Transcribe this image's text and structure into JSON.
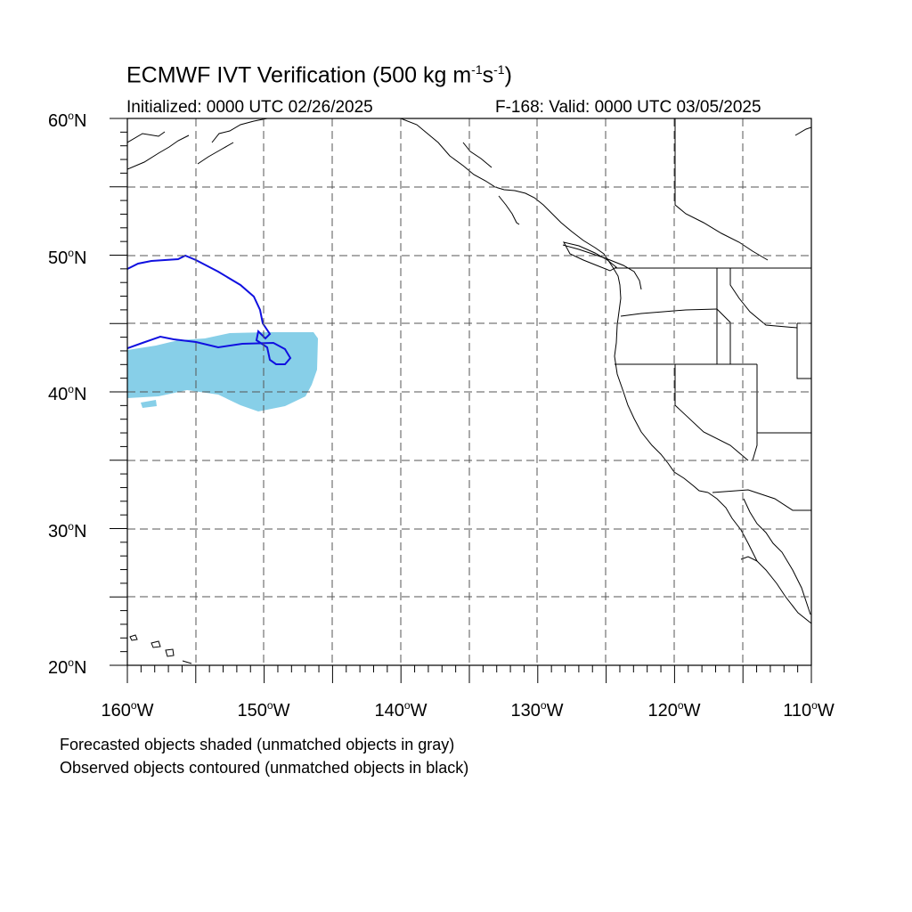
{
  "title": {
    "main": "ECMWF IVT Verification (500 kg m",
    "exp1": "-1",
    "mid": "s",
    "exp2": "-1",
    "close": ")"
  },
  "subtitle_left": "Initialized: 0000 UTC 02/26/2025",
  "subtitle_right": "F-168: Valid: 0000 UTC 03/05/2025",
  "lat_labels": [
    {
      "value": "60",
      "suffix": "N"
    },
    {
      "value": "50",
      "suffix": "N"
    },
    {
      "value": "40",
      "suffix": "N"
    },
    {
      "value": "30",
      "suffix": "N"
    },
    {
      "value": "20",
      "suffix": "N"
    }
  ],
  "lon_labels": [
    {
      "value": "160",
      "suffix": "W"
    },
    {
      "value": "150",
      "suffix": "W"
    },
    {
      "value": "140",
      "suffix": "W"
    },
    {
      "value": "130",
      "suffix": "W"
    },
    {
      "value": "120",
      "suffix": "W"
    },
    {
      "value": "110",
      "suffix": "W"
    }
  ],
  "degree_symbol": "o",
  "notes": [
    "Forecasted objects shaded (unmatched objects in gray)",
    "Observed objects contoured (unmatched objects in black)"
  ],
  "colors": {
    "forecast_fill": "#87cfe8",
    "observed_contour": "#1010e0",
    "coastline": "#000000",
    "grid": "#555555"
  }
}
